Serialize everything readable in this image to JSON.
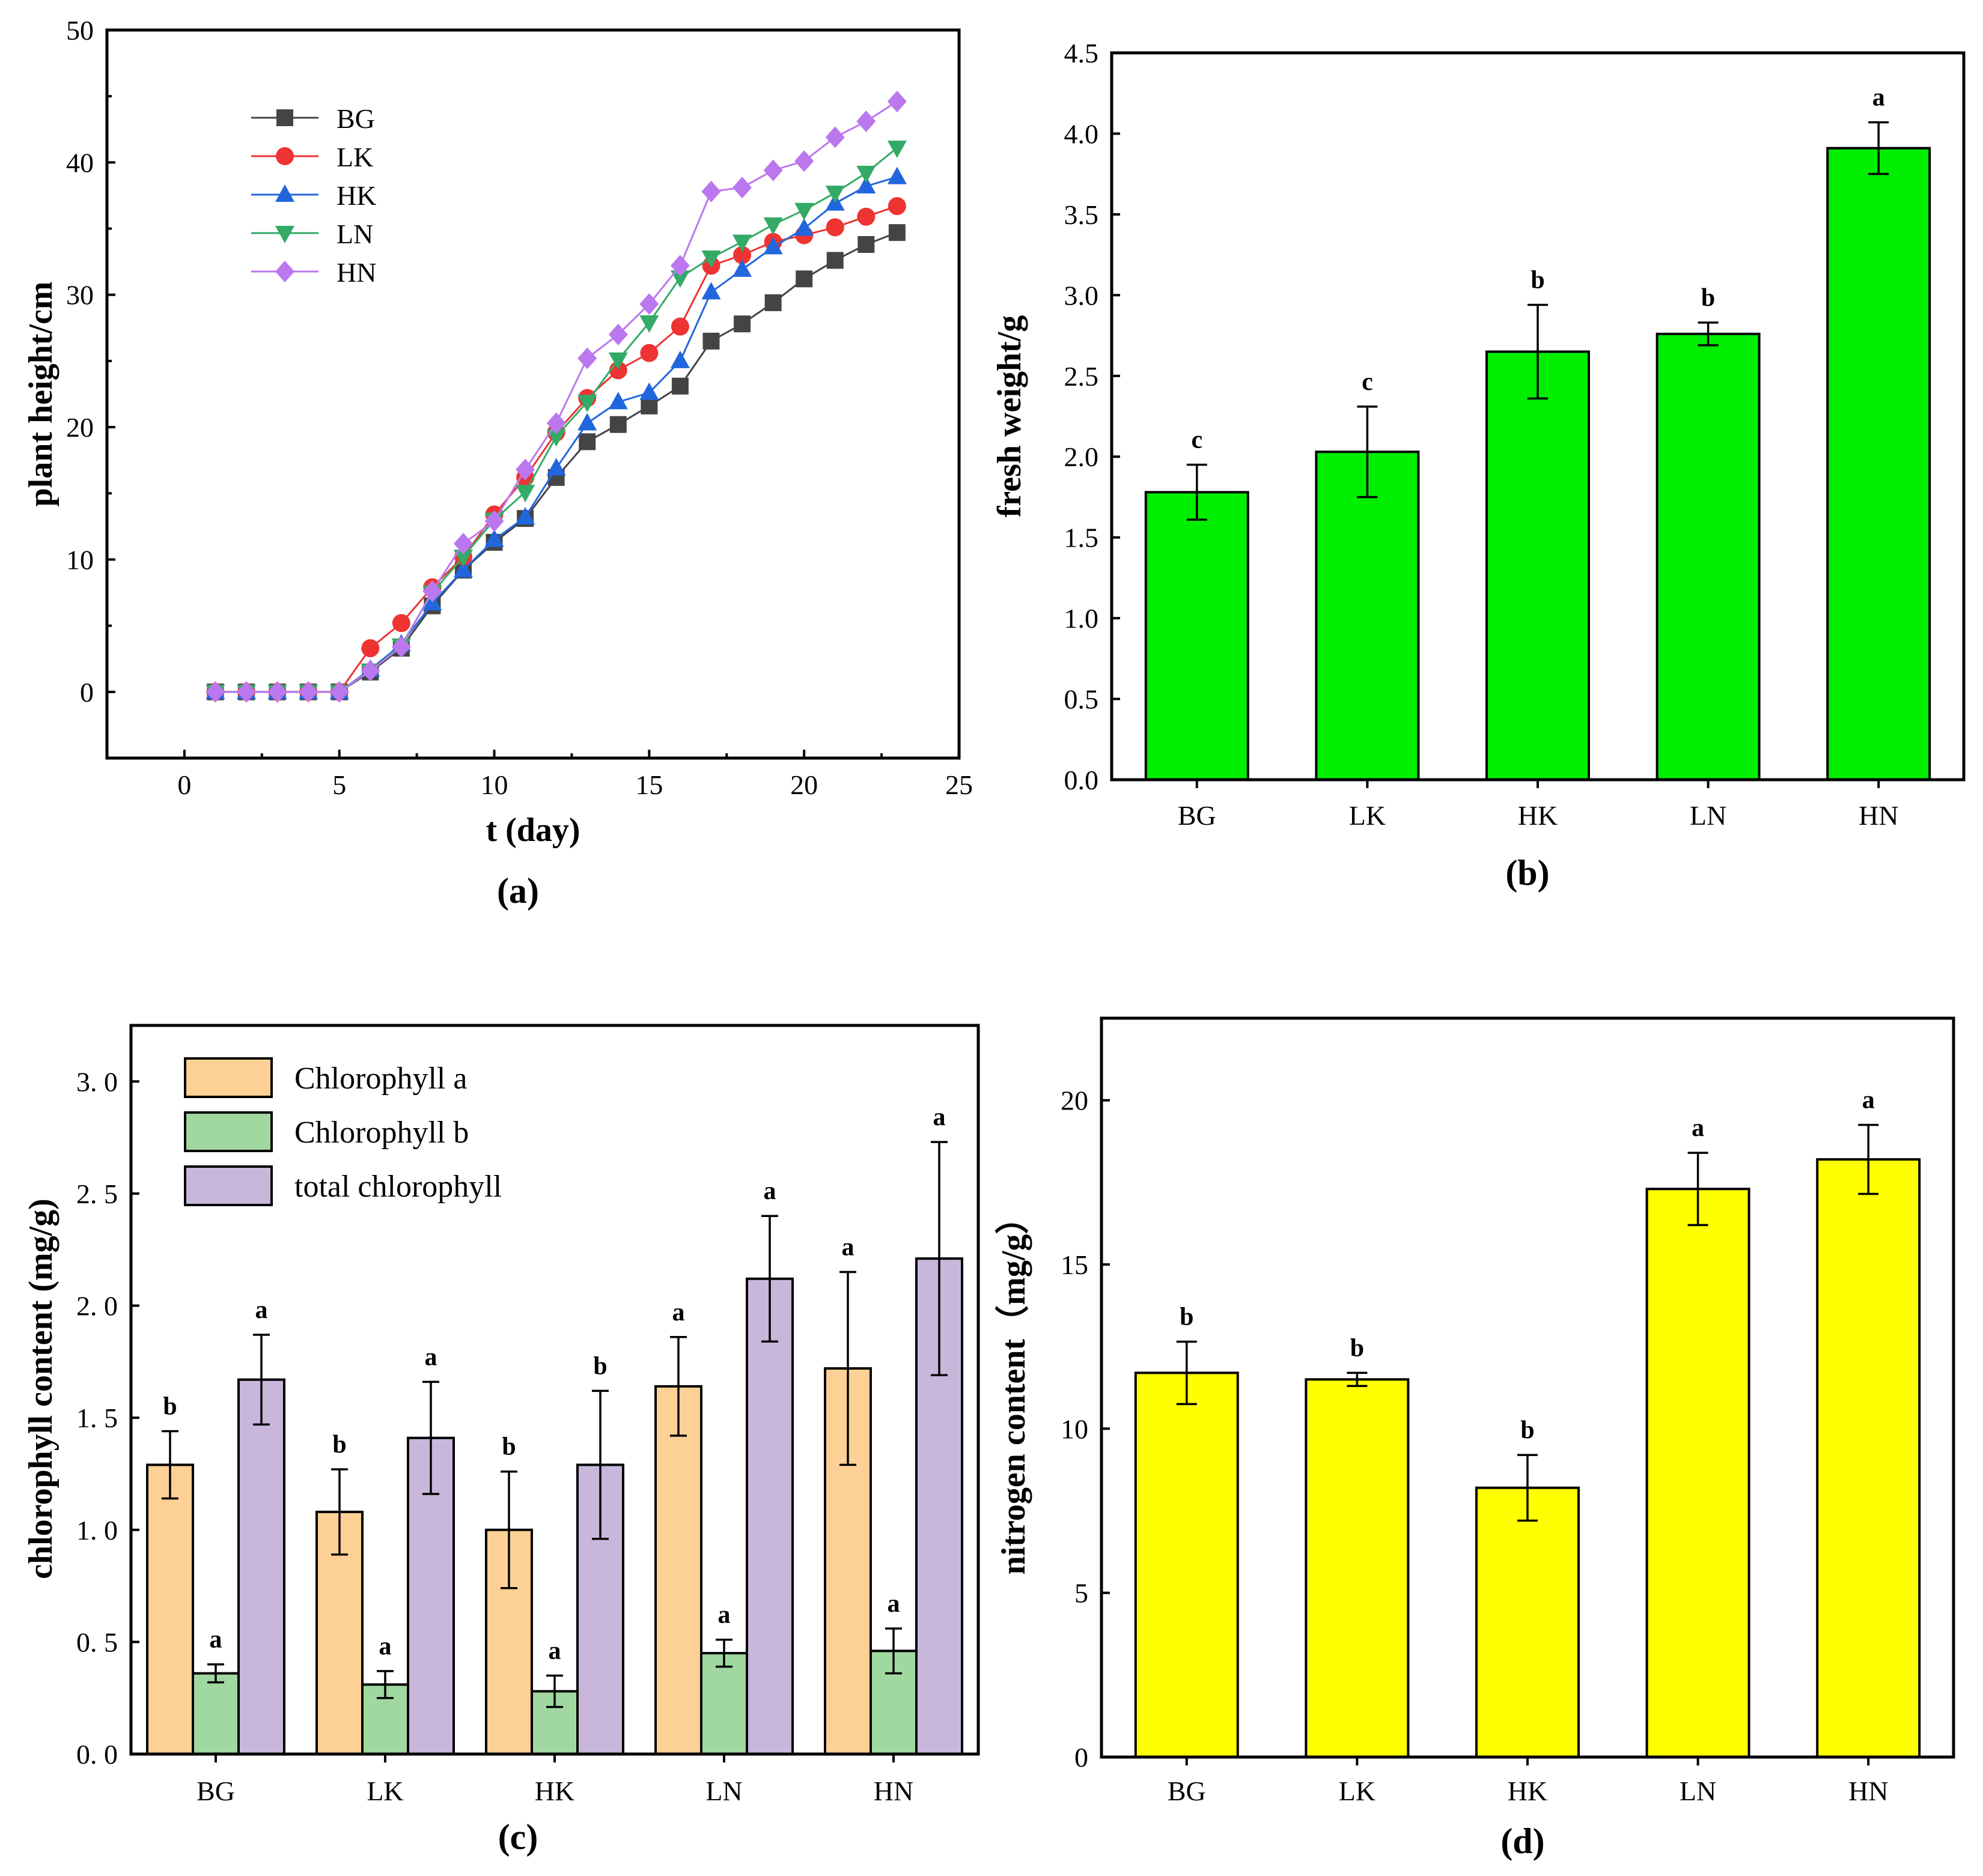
{
  "chart_data": [
    {
      "id": "a",
      "type": "line",
      "caption": "(a)",
      "xlabel": "t (day)",
      "ylabel": "plant height/cm",
      "xlim": [
        -2.5,
        25
      ],
      "ylim": [
        -5,
        50
      ],
      "xticks": [
        0,
        5,
        10,
        15,
        20,
        25
      ],
      "yticks": [
        0,
        10,
        20,
        30,
        40,
        50
      ],
      "x": [
        1,
        2,
        3,
        4,
        5,
        6,
        7,
        8,
        9,
        10,
        11,
        12,
        13,
        14,
        15,
        16,
        17,
        18,
        19,
        20,
        21,
        22,
        23
      ],
      "legend_position": "top-left",
      "series": [
        {
          "name": "BG",
          "color": "#444444",
          "marker": "square",
          "values": [
            0,
            0,
            0,
            0,
            0,
            1.5,
            3.3,
            6.5,
            9.2,
            11.3,
            13.1,
            16.2,
            18.9,
            20.2,
            21.6,
            23.1,
            26.5,
            27.8,
            29.4,
            31.2,
            32.6,
            33.8,
            34.7
          ]
        },
        {
          "name": "LK",
          "color": "#ee3333",
          "marker": "circle",
          "values": [
            0,
            0,
            0,
            0,
            0,
            3.3,
            5.2,
            7.9,
            10.2,
            13.4,
            16.2,
            19.6,
            22.2,
            24.3,
            25.6,
            27.6,
            32.2,
            33.0,
            34.0,
            34.5,
            35.1,
            35.9,
            36.7
          ]
        },
        {
          "name": "HK",
          "color": "#2266dd",
          "marker": "triangle-up",
          "values": [
            0,
            0,
            0,
            0,
            0,
            1.7,
            3.6,
            6.7,
            9.2,
            11.5,
            13.2,
            16.9,
            20.3,
            21.9,
            22.6,
            25.0,
            30.2,
            31.9,
            33.6,
            35.0,
            36.9,
            38.2,
            38.9
          ]
        },
        {
          "name": "LN",
          "color": "#33aa66",
          "marker": "triangle-down",
          "values": [
            0,
            0,
            0,
            0,
            0,
            1.6,
            3.5,
            7.5,
            10.2,
            13.0,
            15.1,
            19.3,
            21.9,
            25.1,
            27.9,
            31.3,
            32.8,
            34.0,
            35.3,
            36.4,
            37.7,
            39.2,
            41.1
          ]
        },
        {
          "name": "HN",
          "color": "#bb77ee",
          "marker": "diamond",
          "values": [
            0,
            0,
            0,
            0,
            0,
            1.6,
            3.4,
            7.6,
            11.2,
            12.9,
            16.8,
            20.3,
            25.2,
            27.0,
            29.3,
            32.2,
            37.8,
            38.1,
            39.4,
            40.1,
            41.9,
            43.1,
            44.6
          ]
        }
      ]
    },
    {
      "id": "b",
      "type": "bar",
      "caption": "(b)",
      "xlabel": "",
      "ylabel": "fresh weight/g",
      "ylim": [
        0,
        4.5
      ],
      "yticks": [
        "0.0",
        "0.5",
        "1.0",
        "1.5",
        "2.0",
        "2.5",
        "3.0",
        "3.5",
        "4.0",
        "4.5"
      ],
      "categories": [
        "BG",
        "LK",
        "HK",
        "LN",
        "HN"
      ],
      "values": [
        1.78,
        2.03,
        2.65,
        2.76,
        3.91
      ],
      "errors": [
        0.17,
        0.28,
        0.29,
        0.07,
        0.16
      ],
      "letters": [
        "c",
        "c",
        "b",
        "b",
        "a"
      ],
      "color": "#00ee00"
    },
    {
      "id": "c",
      "type": "bar",
      "caption": "(c)",
      "xlabel": "",
      "ylabel": "chlorophyll content (mg/g)",
      "ylim": [
        0,
        3.25
      ],
      "yticks": [
        "0. 0",
        "0. 5",
        "1. 0",
        "1. 5",
        "2. 0",
        "2. 5",
        "3. 0"
      ],
      "categories": [
        "BG",
        "LK",
        "HK",
        "LN",
        "HN"
      ],
      "legend_position": "top-left",
      "series": [
        {
          "name": "Chlorophyll a",
          "color": "#fdd095",
          "values": [
            1.29,
            1.08,
            1.0,
            1.64,
            1.72
          ],
          "errors": [
            0.15,
            0.19,
            0.26,
            0.22,
            0.43
          ],
          "letters": [
            "b",
            "b",
            "b",
            "a",
            "a"
          ]
        },
        {
          "name": "Chlorophyll b",
          "color": "#a0d8a0",
          "values": [
            0.36,
            0.31,
            0.28,
            0.45,
            0.46
          ],
          "errors": [
            0.04,
            0.06,
            0.07,
            0.06,
            0.1
          ],
          "letters": [
            "a",
            "a",
            "a",
            "a",
            "a"
          ]
        },
        {
          "name": "total chlorophyll",
          "color": "#c8b7db",
          "values": [
            1.67,
            1.41,
            1.29,
            2.12,
            2.21
          ],
          "errors": [
            0.2,
            0.25,
            0.33,
            0.28,
            0.52
          ],
          "letters": [
            "a",
            "a",
            "b",
            "a",
            "a"
          ]
        }
      ]
    },
    {
      "id": "d",
      "type": "bar",
      "caption": "(d)",
      "xlabel": "",
      "ylabel": "nitrogen content（mg/g）",
      "ylim": [
        0,
        22.5
      ],
      "yticks": [
        "0",
        "5",
        "10",
        "15",
        "20"
      ],
      "categories": [
        "BG",
        "LK",
        "HK",
        "LN",
        "HN"
      ],
      "values": [
        11.7,
        11.5,
        8.2,
        17.3,
        18.2
      ],
      "errors": [
        0.95,
        0.2,
        1.0,
        1.1,
        1.05
      ],
      "letters": [
        "b",
        "b",
        "b",
        "a",
        "a"
      ],
      "color": "#ffff00"
    }
  ]
}
